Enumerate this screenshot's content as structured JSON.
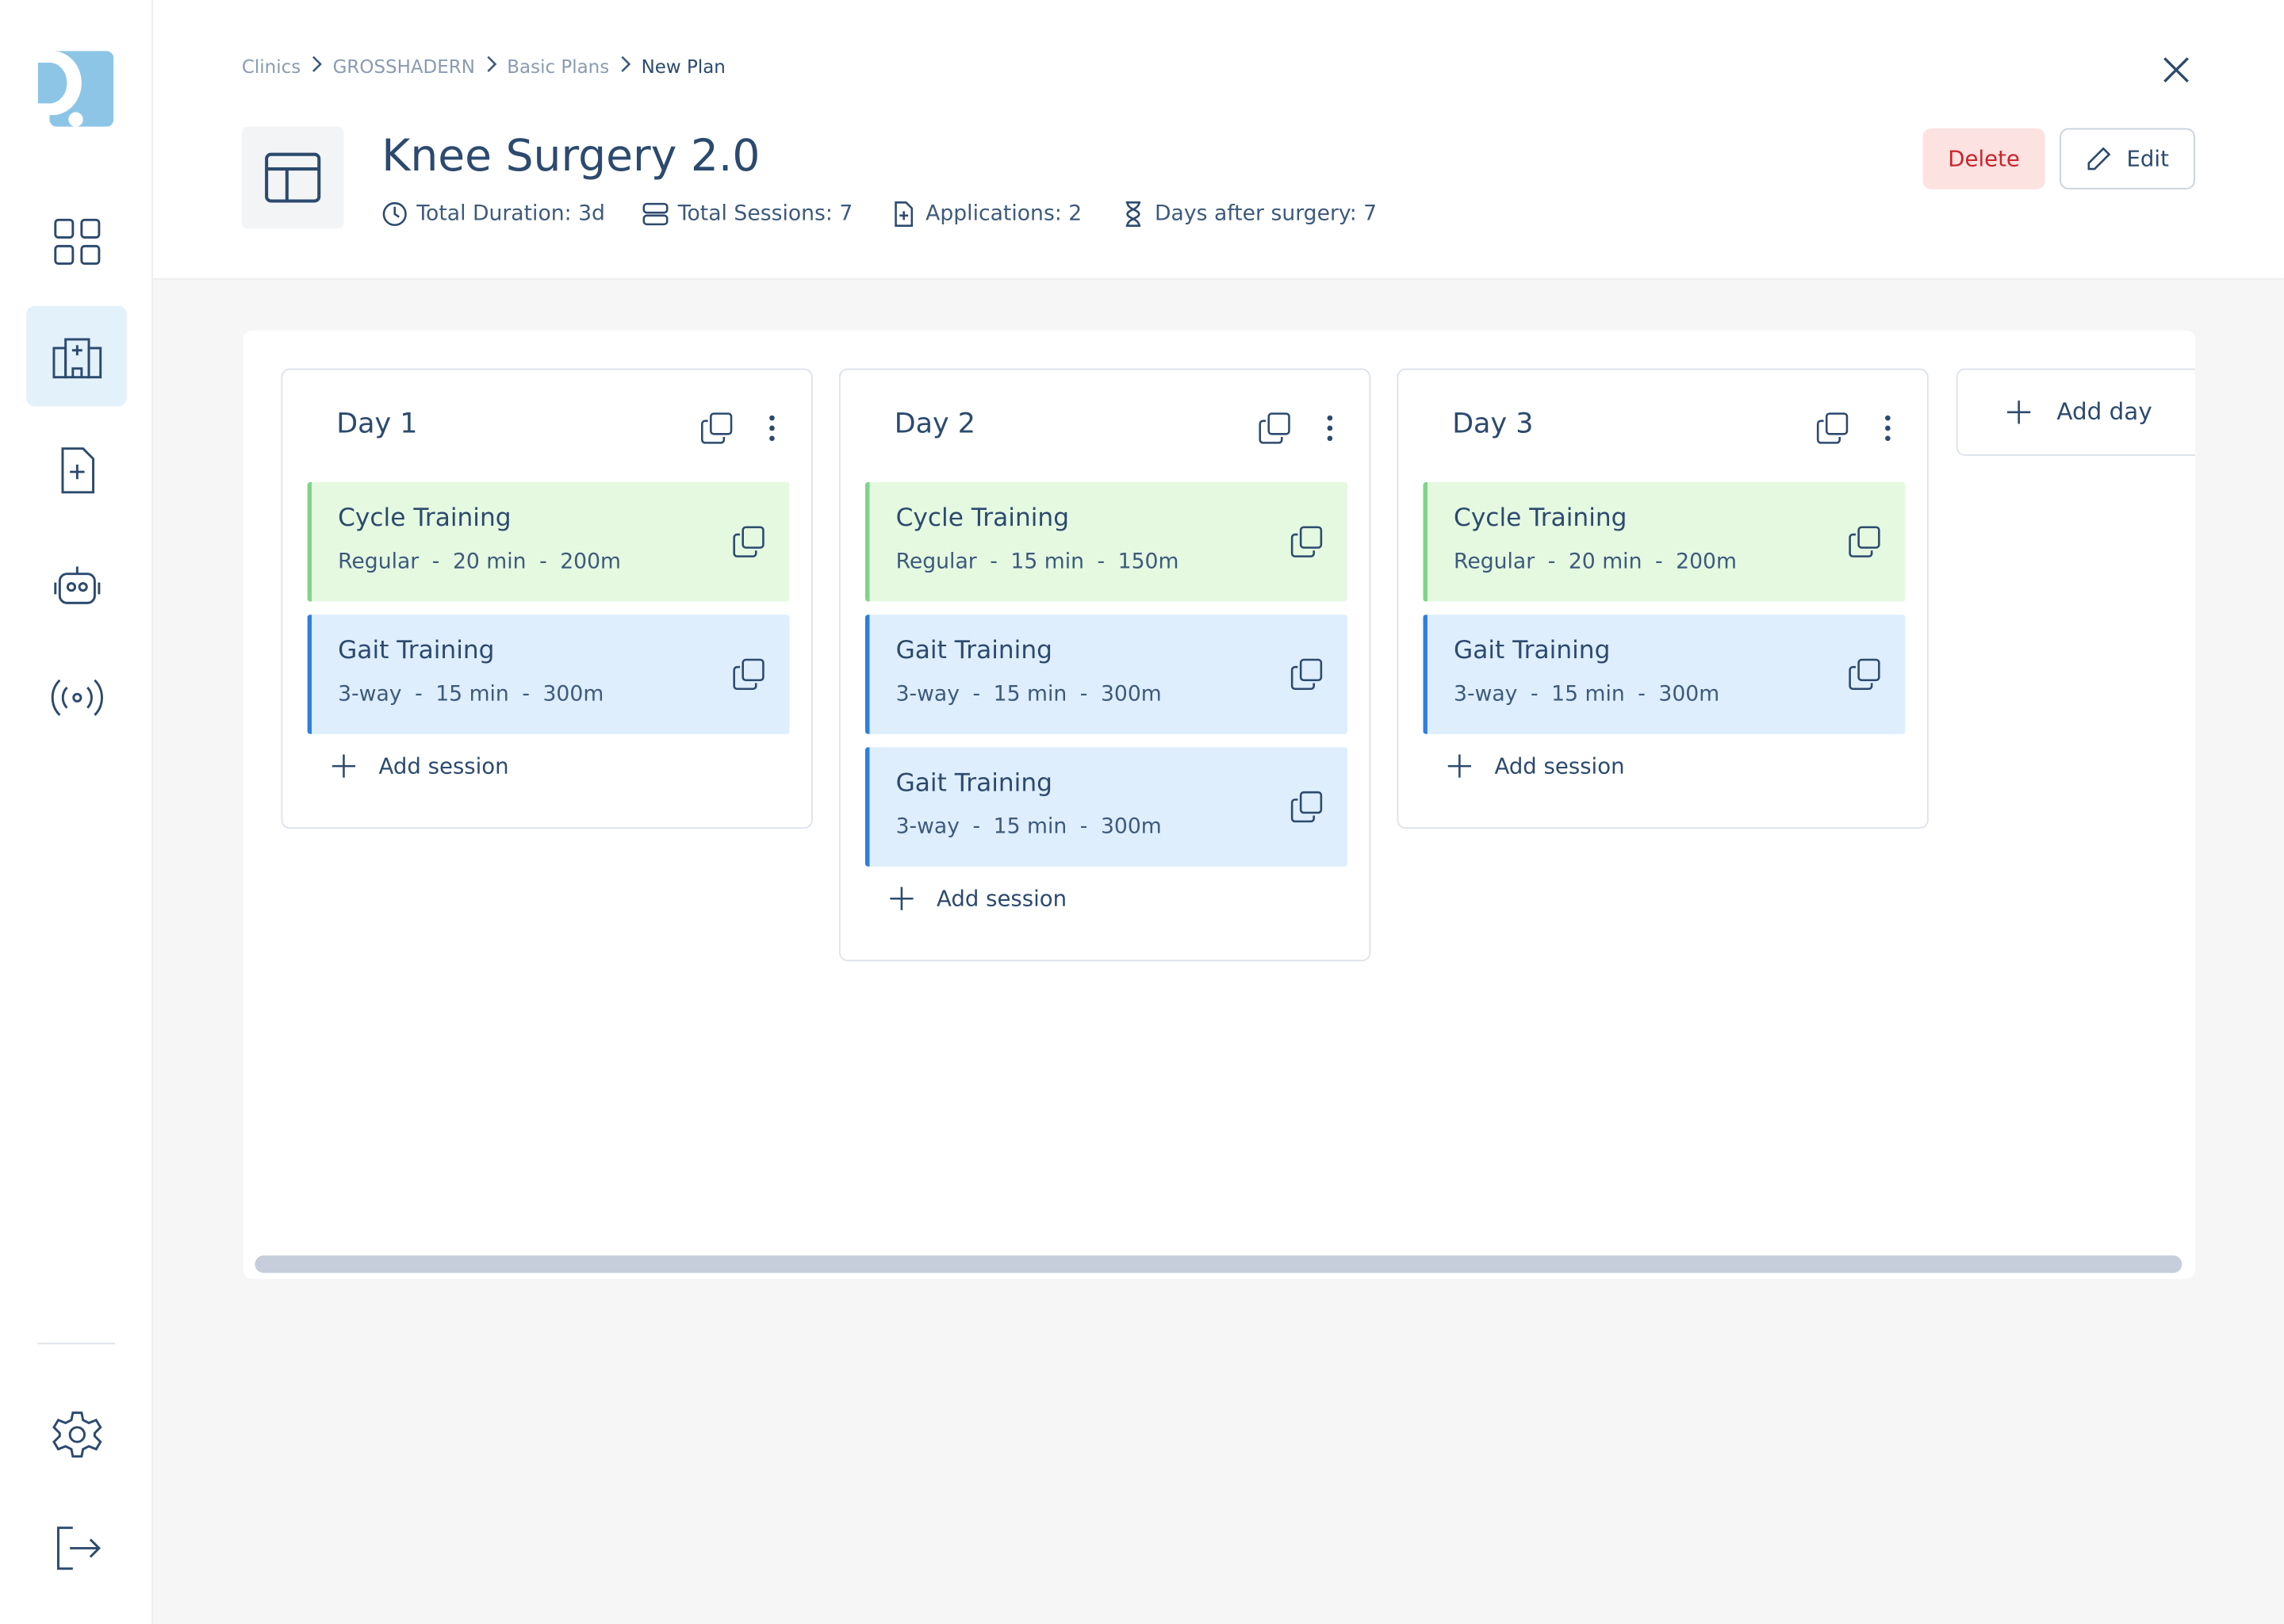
{
  "breadcrumb": [
    "Clinics",
    "GROSSHADERN",
    "Basic Plans",
    "New Plan"
  ],
  "plan": {
    "title": "Knee Surgery 2.0",
    "stats": [
      "Total Duration: 3d",
      "Total Sessions: 7",
      "Applications: 2",
      "Days after surgery: 7"
    ]
  },
  "actions": {
    "delete": "Delete",
    "edit": "Edit"
  },
  "detail_separator": "-",
  "add_session": "Add session",
  "add_day": "Add day",
  "days": [
    {
      "title": "Day 1",
      "sessions": [
        {
          "name": "Cycle Training",
          "kind": "cycle",
          "details": [
            "Regular",
            "20 min",
            "200m"
          ]
        },
        {
          "name": "Gait Training",
          "kind": "gait",
          "details": [
            "3-way",
            "15 min",
            "300m"
          ]
        }
      ]
    },
    {
      "title": "Day 2",
      "sessions": [
        {
          "name": "Cycle Training",
          "kind": "cycle",
          "details": [
            "Regular",
            "15 min",
            "150m"
          ]
        },
        {
          "name": "Gait Training",
          "kind": "gait",
          "details": [
            "3-way",
            "15 min",
            "300m"
          ]
        },
        {
          "name": "Gait Training",
          "kind": "gait",
          "details": [
            "3-way",
            "15 min",
            "300m"
          ]
        }
      ]
    },
    {
      "title": "Day 3",
      "sessions": [
        {
          "name": "Cycle Training",
          "kind": "cycle",
          "details": [
            "Regular",
            "20 min",
            "200m"
          ]
        },
        {
          "name": "Gait Training",
          "kind": "gait",
          "details": [
            "3-way",
            "15 min",
            "300m"
          ]
        }
      ]
    }
  ]
}
